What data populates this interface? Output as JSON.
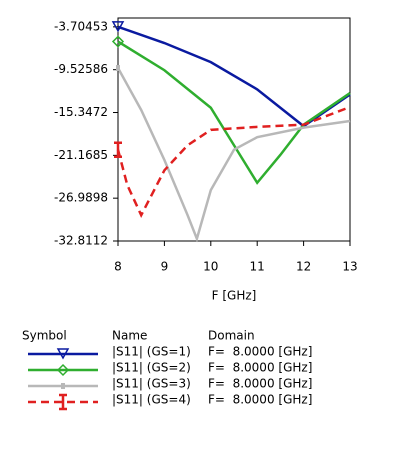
{
  "chart_data": {
    "type": "line",
    "x_label": "F [GHz]",
    "xlim": [
      8,
      13
    ],
    "xticks": [
      8,
      9,
      10,
      11,
      12,
      13
    ],
    "ylim": [
      -32.8112,
      -2.5
    ],
    "yticks": [
      -3.70453,
      -9.52586,
      -15.3472,
      -21.1685,
      -26.9898,
      -32.8112
    ],
    "legend_headers": [
      "Symbol",
      "Name",
      "Domain"
    ],
    "series": [
      {
        "name": "|S11| (GS=1)",
        "domain": "F=  8.0000 [GHz]",
        "color": "#0a1aa0",
        "dash": "solid",
        "marker": "triangle",
        "x": [
          8,
          9,
          10,
          11,
          12,
          13
        ],
        "values": [
          -3.7,
          -5.9,
          -8.5,
          -12.2,
          -17.2,
          -12.9
        ]
      },
      {
        "name": "|S11| (GS=2)",
        "domain": "F=  8.0000 [GHz]",
        "color": "#2fae2f",
        "dash": "solid",
        "marker": "diamond",
        "x": [
          8,
          9,
          10,
          10.5,
          11,
          11.5,
          12,
          13
        ],
        "values": [
          -5.7,
          -9.6,
          -14.7,
          -19.8,
          -24.9,
          -21.1,
          -17.0,
          -12.7
        ]
      },
      {
        "name": "|S11| (GS=3)",
        "domain": "F=  8.0000 [GHz]",
        "color": "#b8b8b8",
        "dash": "solid",
        "marker": "dot",
        "x": [
          8,
          8.5,
          9,
          9.5,
          9.7,
          10,
          10.5,
          11,
          12,
          13
        ],
        "values": [
          -9.3,
          -15.0,
          -21.8,
          -29.3,
          -32.5,
          -25.9,
          -20.4,
          -18.7,
          -17.4,
          -16.5
        ]
      },
      {
        "name": "|S11| (GS=4)",
        "domain": "F=  8.0000 [GHz]",
        "color": "#e02020",
        "dash": "dashed",
        "marker": "bar",
        "x": [
          8,
          8.2,
          8.5,
          9,
          9.5,
          10,
          11,
          12,
          13
        ],
        "values": [
          -20.4,
          -25.2,
          -29.3,
          -23.2,
          -19.8,
          -17.7,
          -17.3,
          -17.0,
          -14.6
        ]
      }
    ]
  }
}
